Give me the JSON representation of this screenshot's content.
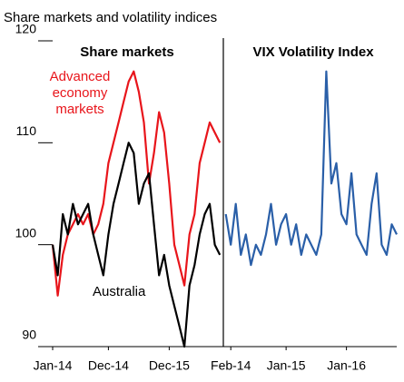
{
  "title": "Share markets and volatility indices",
  "chart_data": [
    {
      "type": "line",
      "title": "Share markets",
      "x": [
        0,
        1,
        2,
        3,
        4,
        5,
        6,
        7,
        8,
        9,
        10,
        11,
        12,
        13,
        14,
        15,
        16,
        17,
        18,
        19,
        20,
        21,
        22,
        23,
        24,
        25,
        26,
        27,
        28,
        29,
        30,
        31,
        32,
        33
      ],
      "xlim": [
        0,
        33.5
      ],
      "xticks": [
        {
          "value": 0,
          "label": "Jan-14"
        },
        {
          "value": 11,
          "label": "Dec-14"
        },
        {
          "value": 23,
          "label": "Dec-15"
        }
      ],
      "ylim": [
        90,
        120
      ],
      "yticks": [
        90,
        100,
        110,
        120
      ],
      "series": [
        {
          "name": "Advanced economy markets",
          "color": "#e8151b",
          "values": [
            100,
            95,
            99,
            101,
            102,
            103,
            102,
            103,
            101,
            102,
            104,
            108,
            110,
            112,
            114,
            116,
            117,
            115,
            112,
            106,
            109,
            113,
            111,
            106,
            100,
            98,
            96,
            101,
            103,
            108,
            110,
            112,
            111,
            110
          ]
        },
        {
          "name": "Australia",
          "color": "#000000",
          "values": [
            100,
            97,
            103,
            101,
            104,
            102,
            103,
            104,
            101,
            99,
            97,
            101,
            104,
            106,
            108,
            110,
            109,
            104,
            106,
            107,
            102,
            97,
            99,
            96,
            94,
            92,
            90,
            96,
            98,
            101,
            103,
            104,
            100,
            99
          ]
        }
      ]
    },
    {
      "type": "line",
      "title": "VIX Volatility Index",
      "x": [
        -1,
        0,
        1,
        2,
        3,
        4,
        5,
        6,
        7,
        8,
        9,
        10,
        11,
        12,
        13,
        14,
        15,
        16,
        17,
        18,
        19,
        20,
        21,
        22,
        23,
        24,
        25,
        26,
        27,
        28,
        29,
        30,
        31,
        32,
        33
      ],
      "xlim": [
        -1.3,
        33
      ],
      "xticks": [
        {
          "value": 0,
          "label": "Feb-14"
        },
        {
          "value": 11,
          "label": "Jan-15"
        },
        {
          "value": 23,
          "label": "Jan-16"
        }
      ],
      "ylim": [
        90,
        120
      ],
      "series": [
        {
          "name": "VIX",
          "color": "#2a5fa8",
          "values": [
            103,
            100,
            104,
            99,
            101,
            98,
            100,
            99,
            101,
            104,
            100,
            102,
            103,
            100,
            102,
            99,
            101,
            100,
            99,
            101,
            117,
            106,
            108,
            103,
            102,
            107,
            101,
            100,
            99,
            104,
            107,
            100,
            99,
            102,
            101
          ]
        }
      ]
    }
  ]
}
